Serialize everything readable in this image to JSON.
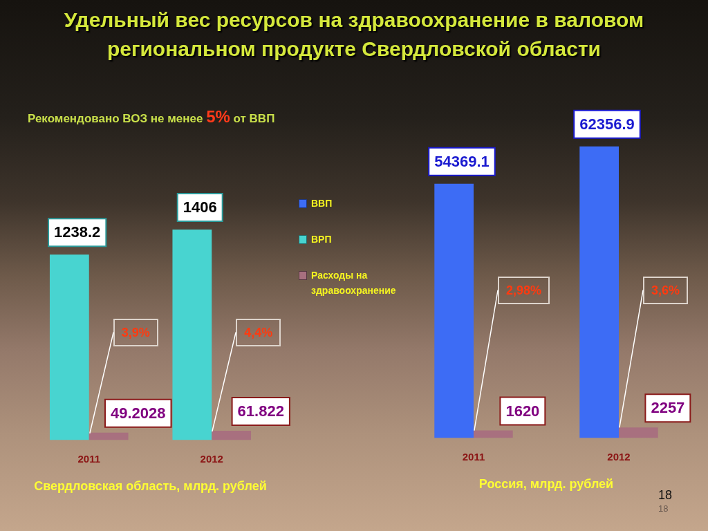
{
  "chart_data": [
    {
      "type": "bar",
      "title": "Удельный вес ресурсов на здравоохранение в валовом региональном продукте Свердловской области",
      "subtitle": "Рекомендовано ВОЗ не менее 5% от ВВП",
      "xlabel": "Свердловская область, млрд. рублей",
      "categories": [
        "2011",
        "2012"
      ],
      "series": [
        {
          "name": "ВРП",
          "color": "#48d4d0",
          "values": [
            1238.2,
            1406
          ]
        },
        {
          "name": "Расходы на здравоохранение",
          "color": "#a8707f",
          "values": [
            49.2028,
            61.822
          ]
        }
      ],
      "data_labels": true,
      "legend": "right",
      "tick_labels": "x",
      "annotations": [
        {
          "text": "3,9%",
          "x": "2011",
          "y": 49.2028
        },
        {
          "text": "4,4%",
          "x": "2012",
          "y": 61.822
        }
      ]
    },
    {
      "type": "bar",
      "xlabel": "Россия, млрд. рублей",
      "categories": [
        "2011",
        "2012"
      ],
      "series": [
        {
          "name": "ВВП",
          "color": "#3d6cf5",
          "values": [
            54369.1,
            62356.9
          ]
        },
        {
          "color": "#a8707f",
          "values": [
            1620,
            2257
          ]
        }
      ],
      "data_labels": true,
      "legend": "left",
      "tick_labels": "x",
      "annotations": [
        {
          "text": "2,98%",
          "x": "2011",
          "y": 1620
        },
        {
          "text": "3,6%",
          "x": "2012",
          "y": 2257
        },
        "18",
        "18"
      ]
    }
  ]
}
